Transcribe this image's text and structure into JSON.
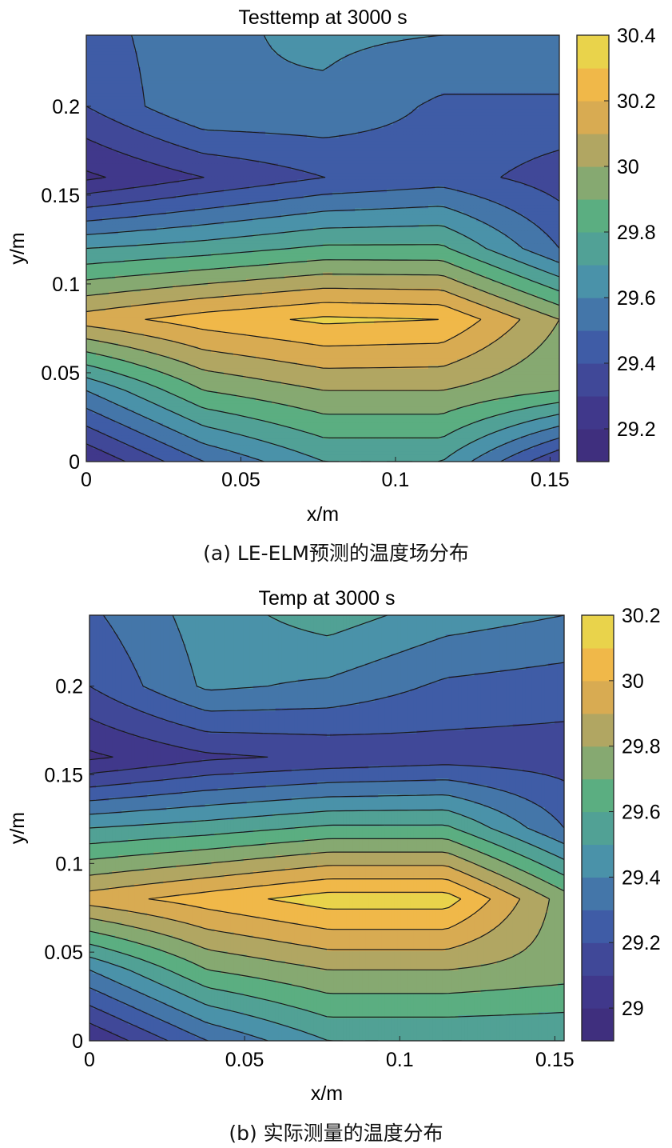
{
  "palette": [
    "#3e2a78",
    "#413b8f",
    "#3f60a9",
    "#4a94a9",
    "#58ae82",
    "#a8a565",
    "#f2ae48",
    "#e6e04c"
  ],
  "chart_data": [
    {
      "type": "contour",
      "title": "Testtemp at 3000 s",
      "xlabel": "x/m",
      "ylabel": "y/m",
      "caption": "(a) LE-ELM预测的温度场分布",
      "xlim": [
        0,
        0.153
      ],
      "ylim": [
        0,
        0.24
      ],
      "xticks": [
        "0",
        "0.05",
        "0.1",
        "0.15"
      ],
      "yticks": [
        "0",
        "0.05",
        "0.1",
        "0.15",
        "0.2"
      ],
      "colorbar": {
        "min": 29.1,
        "max": 30.4,
        "ticks": [
          "29.2",
          "29.4",
          "29.6",
          "29.8",
          "30",
          "30.2",
          "30.4"
        ]
      },
      "x": [
        0,
        0.038,
        0.077,
        0.115,
        0.153
      ],
      "y": [
        0,
        0.04,
        0.08,
        0.12,
        0.16,
        0.2,
        0.24
      ],
      "z": [
        [
          29.2,
          29.5,
          29.7,
          29.7,
          29.3
        ],
        [
          29.6,
          29.9,
          30.0,
          30.0,
          29.9
        ],
        [
          30.15,
          30.25,
          30.32,
          30.3,
          30.0
        ],
        [
          29.7,
          29.75,
          29.82,
          29.82,
          29.5
        ],
        [
          29.18,
          29.3,
          29.4,
          29.45,
          29.35
        ],
        [
          29.4,
          29.6,
          29.58,
          29.48,
          29.48
        ],
        [
          29.45,
          29.58,
          29.62,
          29.6,
          29.6
        ]
      ],
      "levels": [
        29.2,
        29.3,
        29.4,
        29.5,
        29.6,
        29.7,
        29.8,
        29.9,
        30.0,
        30.1,
        30.2,
        30.3
      ]
    },
    {
      "type": "contour",
      "title": "Temp at 3000 s",
      "xlabel": "x/m",
      "ylabel": "y/m",
      "caption": "(b) 实际测量的温度分布",
      "xlim": [
        0,
        0.153
      ],
      "ylim": [
        0,
        0.24
      ],
      "xticks": [
        "0",
        "0.05",
        "0.1",
        "0.15"
      ],
      "yticks": [
        "0",
        "0.05",
        "0.1",
        "0.15",
        "0.2"
      ],
      "colorbar": {
        "min": 28.9,
        "max": 30.2,
        "ticks": [
          "29",
          "29.2",
          "29.4",
          "29.6",
          "29.8",
          "30",
          "30.2"
        ]
      },
      "x": [
        0,
        0.038,
        0.077,
        0.115,
        0.153
      ],
      "y": [
        0,
        0.04,
        0.08,
        0.12,
        0.16,
        0.2,
        0.24
      ],
      "z": [
        [
          29.0,
          29.3,
          29.5,
          29.5,
          29.5
        ],
        [
          29.4,
          29.7,
          29.8,
          29.8,
          29.75
        ],
        [
          29.95,
          30.05,
          30.15,
          30.15,
          29.75
        ],
        [
          29.5,
          29.55,
          29.62,
          29.62,
          29.3
        ],
        [
          28.98,
          29.08,
          29.12,
          29.15,
          29.15
        ],
        [
          29.2,
          29.42,
          29.38,
          29.28,
          29.25
        ],
        [
          29.28,
          29.45,
          29.55,
          29.45,
          29.4
        ]
      ],
      "levels": [
        29.0,
        29.1,
        29.2,
        29.3,
        29.4,
        29.5,
        29.6,
        29.7,
        29.8,
        29.9,
        30.0,
        30.1
      ]
    }
  ]
}
